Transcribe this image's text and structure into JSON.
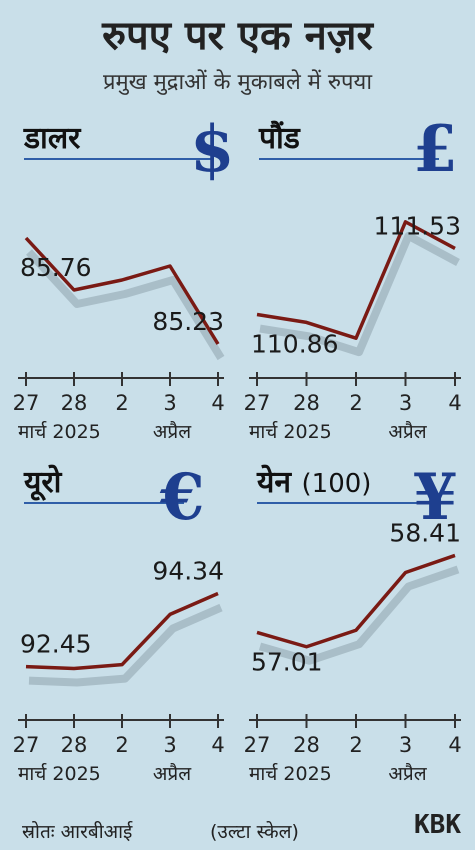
{
  "title": "रुपए पर एक नज़र",
  "subtitle": "प्रमुख मुद्राओं के मुकाबले में रुपया",
  "footer": {
    "source": "स्रोतः आरबीआई",
    "note": "(उल्टा स्केल)",
    "logo": "KBK"
  },
  "colors": {
    "line": "#7a1a14",
    "shadow": "#a9bec8",
    "symbol": "#1e3f8f",
    "rule": "#2f5ea8"
  },
  "chart_data": [
    {
      "type": "line",
      "name": "डालर",
      "symbol": "$",
      "note": "",
      "categories": [
        "27",
        "28",
        "2",
        "3",
        "4"
      ],
      "month_labels": [
        "मार्च 2025",
        "अप्रैल"
      ],
      "values": [
        85.76,
        85.5,
        85.55,
        85.62,
        85.23
      ],
      "value_labels": [
        {
          "index": 0,
          "text": "85.76"
        },
        {
          "index": 4,
          "text": "85.23"
        }
      ],
      "inverted_scale": true,
      "ylim": [
        85.8,
        85.2
      ]
    },
    {
      "type": "line",
      "name": "पौंड",
      "symbol": "£",
      "note": "",
      "categories": [
        "27",
        "28",
        "2",
        "3",
        "4"
      ],
      "month_labels": [
        "मार्च 2025",
        "अप्रैल"
      ],
      "values": [
        110.86,
        110.78,
        110.62,
        111.8,
        111.53
      ],
      "value_labels": [
        {
          "index": 0,
          "text": "110.86"
        },
        {
          "index": 4,
          "text": "111.53"
        }
      ],
      "inverted_scale": true,
      "ylim": [
        111.9,
        110.5
      ]
    },
    {
      "type": "line",
      "name": "यूरो",
      "symbol": "€",
      "note": "",
      "categories": [
        "27",
        "28",
        "2",
        "3",
        "4"
      ],
      "month_labels": [
        "मार्च 2025",
        "अप्रैल"
      ],
      "values": [
        92.45,
        92.4,
        92.5,
        93.8,
        94.34
      ],
      "value_labels": [
        {
          "index": 0,
          "text": "92.45"
        },
        {
          "index": 4,
          "text": "94.34"
        }
      ],
      "inverted_scale": true,
      "ylim": [
        95.0,
        92.0
      ]
    },
    {
      "type": "line",
      "name": "येन",
      "symbol": "¥",
      "note": "(100)",
      "categories": [
        "27",
        "28",
        "2",
        "3",
        "4"
      ],
      "month_labels": [
        "मार्च 2025",
        "अप्रैल"
      ],
      "values": [
        57.01,
        56.75,
        57.05,
        58.1,
        58.41
      ],
      "value_labels": [
        {
          "index": 0,
          "text": "57.01"
        },
        {
          "index": 4,
          "text": "58.41"
        }
      ],
      "inverted_scale": true,
      "ylim": [
        58.8,
        56.4
      ]
    }
  ]
}
